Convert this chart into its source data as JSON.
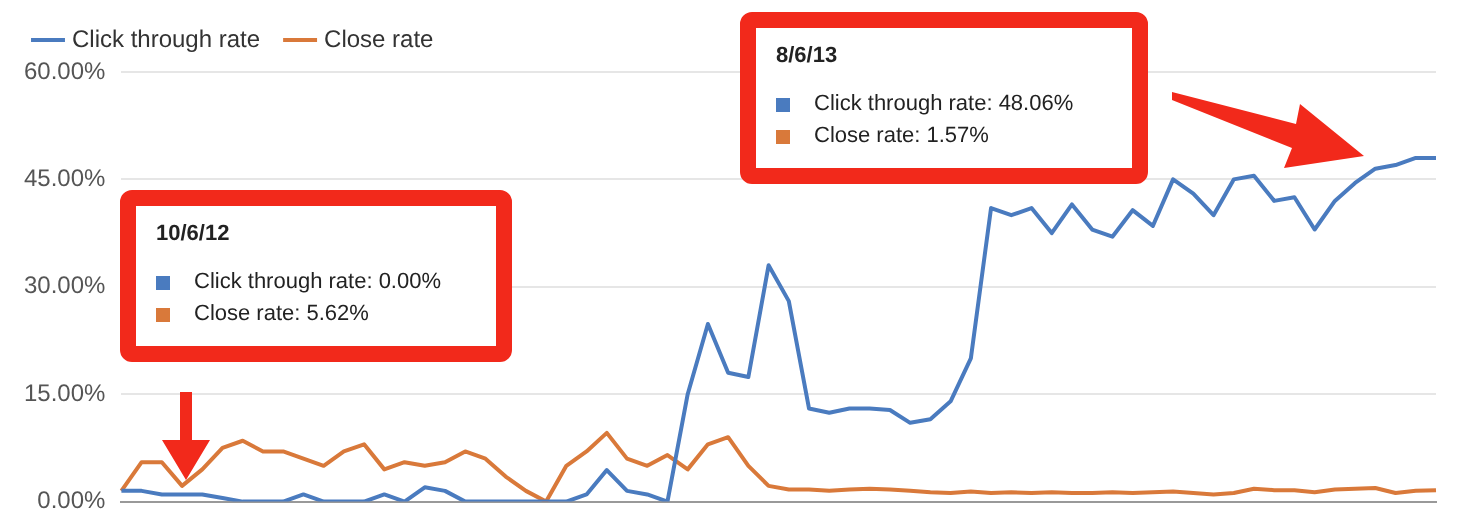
{
  "chart_data": {
    "type": "line",
    "categories": [
      null,
      null,
      null,
      null,
      null,
      null,
      null,
      null,
      null,
      null,
      null,
      null,
      null,
      null,
      null,
      null,
      null,
      null,
      null,
      null,
      null,
      null,
      null,
      null,
      null,
      null,
      null,
      null,
      null,
      null,
      null,
      null,
      null,
      null,
      null,
      null,
      null,
      null,
      null,
      null,
      null,
      null,
      null,
      null,
      null,
      null,
      null,
      null,
      null,
      null,
      null,
      null,
      null,
      null,
      null,
      null,
      null,
      null,
      null,
      null,
      null,
      null,
      null,
      null,
      null,
      null
    ],
    "series": [
      {
        "name": "Click through rate",
        "color": "#4a7bbf",
        "values": [
          1.5,
          1.5,
          1,
          1,
          1,
          0.5,
          0,
          0,
          0,
          1,
          0,
          0,
          0,
          1,
          0,
          2,
          1.5,
          0,
          0,
          0,
          0,
          0,
          0,
          1,
          4.4,
          1.5,
          1,
          0,
          15,
          24.8,
          18,
          17.4,
          33,
          28,
          13,
          12.4,
          13,
          13,
          12.8,
          11,
          11.5,
          14,
          20,
          41,
          40,
          41,
          37.5,
          41.5,
          38,
          37,
          40.7,
          38.5,
          45,
          43,
          40,
          45,
          45.5,
          42,
          42.5,
          38,
          42,
          44.5,
          46.5,
          47,
          48,
          48
        ]
      },
      {
        "name": "Close rate",
        "color": "#d9793a",
        "values": [
          1.5,
          5.5,
          5.5,
          2.2,
          4.5,
          7.5,
          8.5,
          7,
          7,
          6,
          5,
          7,
          8,
          4.5,
          5.5,
          5,
          5.5,
          7,
          6,
          3.5,
          1.5,
          0,
          5,
          7,
          9.6,
          6,
          5,
          6.5,
          4.5,
          8,
          9,
          5,
          2.2,
          1.7,
          1.7,
          1.5,
          1.7,
          1.8,
          1.7,
          1.5,
          1.3,
          1.2,
          1.4,
          1.2,
          1.3,
          1.2,
          1.3,
          1.2,
          1.2,
          1.3,
          1.2,
          1.3,
          1.4,
          1.2,
          1,
          1.2,
          1.8,
          1.6,
          1.6,
          1.3,
          1.7,
          1.8,
          1.9,
          1.2,
          1.5,
          1.6
        ]
      }
    ],
    "ylim": [
      0,
      60
    ],
    "yticks": [
      {
        "value": 0,
        "label": "0.00%"
      },
      {
        "value": 15,
        "label": "15.00%"
      },
      {
        "value": 30,
        "label": "30.00%"
      },
      {
        "value": 45,
        "label": "45.00%"
      },
      {
        "value": 60,
        "label": "60.00%"
      }
    ],
    "grid": "y",
    "legend": "top left",
    "marker": "none",
    "line_style": "solid",
    "annotations": [
      "10/6/12\nClick through rate: 0.00%\nClose rate: 5.62%",
      "8/6/13\nClick through rate: 48.06%\nClose rate: 1.57%"
    ]
  }
}
